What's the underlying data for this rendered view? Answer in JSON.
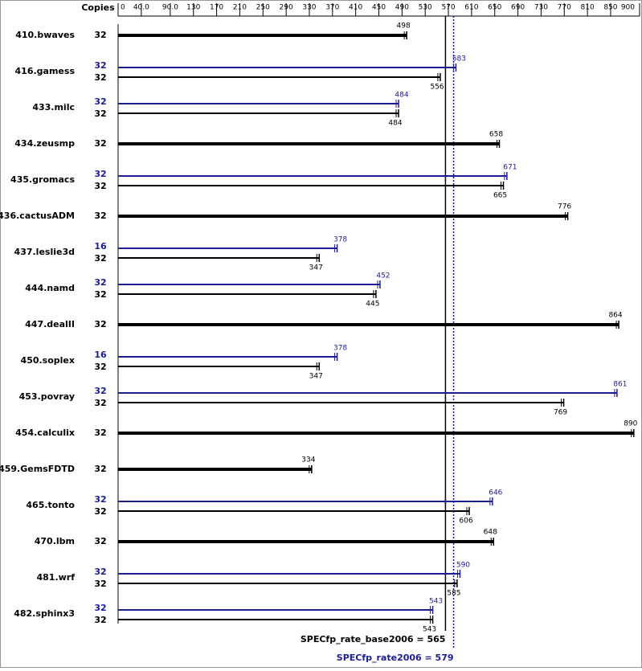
{
  "chart_data": {
    "type": "hbar-pair",
    "copies_label": "Copies",
    "categories": [
      "410.bwaves",
      "416.gamess",
      "433.milc",
      "434.zeusmp",
      "435.gromacs",
      "436.cactusADM",
      "437.leslie3d",
      "444.namd",
      "447.dealII",
      "450.soplex",
      "453.povray",
      "454.calculix",
      "459.GemsFDTD",
      "465.tonto",
      "470.lbm",
      "481.wrf",
      "482.sphinx3"
    ],
    "series": [
      {
        "color": "#000000",
        "copies": [
          32,
          32,
          32,
          32,
          32,
          32,
          32,
          32,
          32,
          32,
          32,
          32,
          32,
          32,
          32,
          32,
          32
        ],
        "values": [
          498,
          556,
          484,
          658,
          665,
          776,
          347,
          445,
          864,
          347,
          769,
          890,
          334,
          606,
          648,
          585,
          543
        ]
      },
      {
        "color": "#1c1c94",
        "copies": [
          null,
          32,
          32,
          null,
          32,
          null,
          16,
          32,
          null,
          16,
          32,
          null,
          null,
          32,
          null,
          32,
          32
        ],
        "values": [
          null,
          583,
          484,
          null,
          671,
          null,
          378,
          452,
          null,
          378,
          861,
          null,
          null,
          646,
          null,
          590,
          543
        ]
      }
    ],
    "xlim": [
      0,
      900
    ],
    "xticks": [
      0,
      {
        "value": 40,
        "label": "40.0"
      },
      {
        "value": 90,
        "label": "90.0"
      },
      130,
      170,
      210,
      250,
      290,
      330,
      370,
      410,
      450,
      490,
      530,
      570,
      610,
      650,
      690,
      730,
      770,
      810,
      850,
      900
    ],
    "reference_lines": [
      {
        "label": "SPECfp_rate_base2006 = 565",
        "value": 565,
        "color": "#000000",
        "style": "solid"
      },
      {
        "label": "SPECfp_rate2006 = 579",
        "value": 579,
        "color": "#1c1c94",
        "style": "dotted"
      }
    ]
  }
}
